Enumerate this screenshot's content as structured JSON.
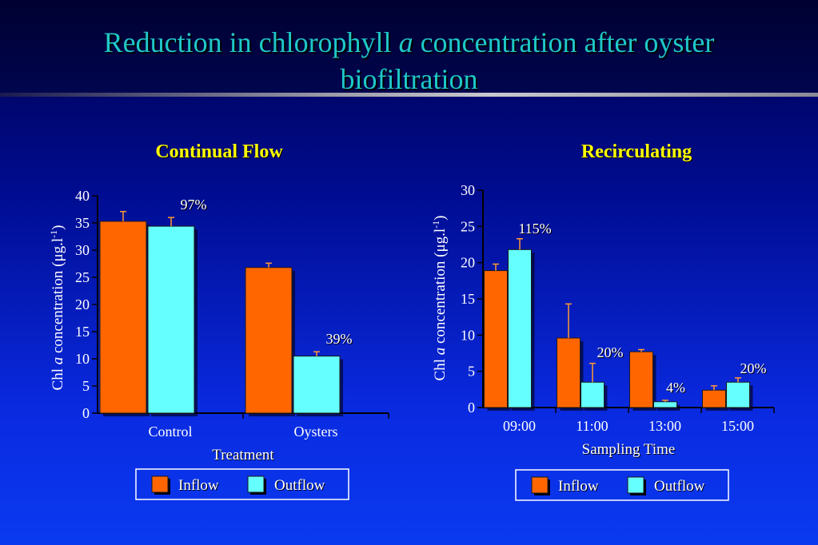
{
  "slide": {
    "title_part1": "Reduction in chlorophyll ",
    "title_italic": "a",
    "title_part2": "  concentration after oyster",
    "title_line2": "biofiltration"
  },
  "colors": {
    "inflow": "#ff6600",
    "outflow": "#66ffff",
    "error_bar": "#ff9933"
  },
  "chart_data": [
    {
      "type": "bar",
      "title": "Continual Flow",
      "xlabel": "Treatment",
      "ylabel_prefix": "Chl ",
      "ylabel_italic": "a",
      "ylabel_main": " concentration (μg.l",
      "ylabel_sup": "-1",
      "ylabel_end": ")",
      "ylim": [
        0,
        40
      ],
      "yticks": [
        0,
        5,
        10,
        15,
        20,
        25,
        30,
        35,
        40
      ],
      "categories": [
        "Control",
        "Oysters"
      ],
      "series": [
        {
          "name": "Inflow",
          "values": [
            35.3,
            26.8
          ],
          "errors": [
            1.8,
            0.8
          ]
        },
        {
          "name": "Outflow",
          "values": [
            34.4,
            10.5
          ],
          "errors": [
            1.6,
            0.8
          ]
        }
      ],
      "annotations": [
        "97%",
        "39%"
      ],
      "legend": [
        "Inflow",
        "Outflow"
      ],
      "legend_position": "bottom"
    },
    {
      "type": "bar",
      "title": "Recirculating",
      "xlabel": "Sampling Time",
      "ylabel_prefix": "Chl ",
      "ylabel_italic": "a",
      "ylabel_main": " concentration (μg.l",
      "ylabel_sup": "-1",
      "ylabel_end": ")",
      "ylim": [
        0,
        30
      ],
      "yticks": [
        0,
        5,
        10,
        15,
        20,
        25,
        30
      ],
      "categories": [
        "09:00",
        "11:00",
        "13:00",
        "15:00"
      ],
      "series": [
        {
          "name": "Inflow",
          "values": [
            18.9,
            9.6,
            7.7,
            2.4
          ],
          "errors": [
            0.9,
            4.7,
            0.3,
            0.6
          ]
        },
        {
          "name": "Outflow",
          "values": [
            21.8,
            3.5,
            0.8,
            3.5
          ],
          "errors": [
            1.5,
            2.6,
            0.2,
            0.6
          ]
        }
      ],
      "annotations": [
        "115%",
        "20%",
        "4%",
        "20%"
      ],
      "legend": [
        "Inflow",
        "Outflow"
      ],
      "legend_position": "bottom"
    }
  ]
}
